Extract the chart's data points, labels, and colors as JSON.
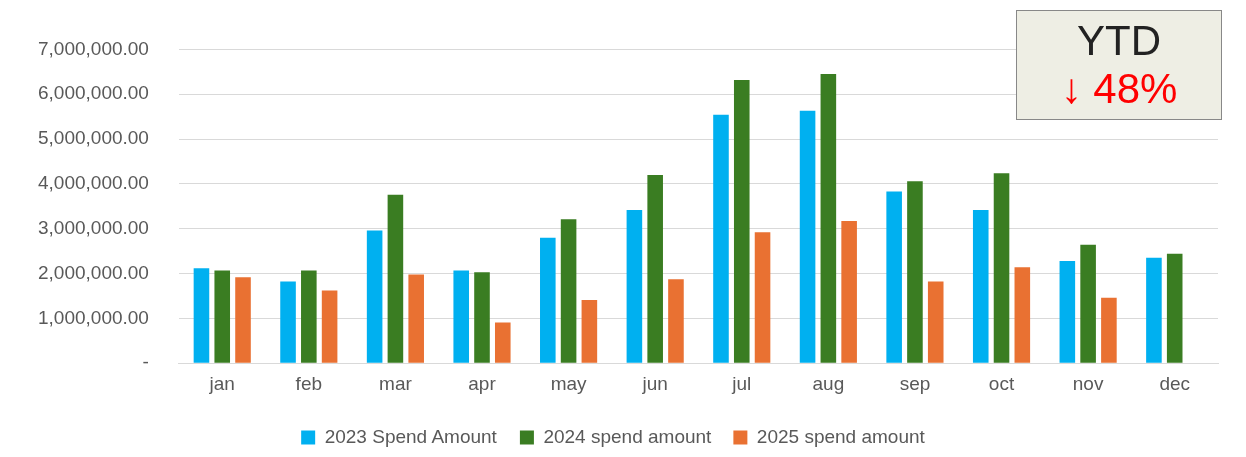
{
  "chart_data": {
    "type": "bar",
    "categories": [
      "jan",
      "feb",
      "mar",
      "apr",
      "may",
      "jun",
      "jul",
      "aug",
      "sep",
      "oct",
      "nov",
      "dec"
    ],
    "series": [
      {
        "name": "2023 Spend Amount",
        "color": "#00b0f0",
        "values": [
          2120000,
          1820000,
          2960000,
          2070000,
          2800000,
          3420000,
          5540000,
          5630000,
          3830000,
          3420000,
          2280000,
          2350000
        ]
      },
      {
        "name": "2024 spend amount",
        "color": "#3a7d22",
        "values": [
          2070000,
          2070000,
          3760000,
          2030000,
          3210000,
          4200000,
          6320000,
          6450000,
          4060000,
          4240000,
          2640000,
          2440000
        ]
      },
      {
        "name": "2025 spend amount",
        "color": "#e97132",
        "values": [
          1920000,
          1620000,
          1980000,
          910000,
          1410000,
          1870000,
          2920000,
          3170000,
          1820000,
          2140000,
          1460000,
          null
        ]
      }
    ],
    "ylim": [
      0,
      7000000
    ],
    "yticks": [
      {
        "value": 0,
        "label": "-"
      },
      {
        "value": 1000000,
        "label": "1,000,000.00"
      },
      {
        "value": 2000000,
        "label": "2,000,000.00"
      },
      {
        "value": 3000000,
        "label": "3,000,000.00"
      },
      {
        "value": 4000000,
        "label": "4,000,000.00"
      },
      {
        "value": 5000000,
        "label": "5,000,000.00"
      },
      {
        "value": 6000000,
        "label": "6,000,000.00"
      },
      {
        "value": 7000000,
        "label": "7,000,000.00"
      }
    ],
    "grid": "y",
    "legend": "bottom",
    "annotations": [
      "YTD",
      "↓ 48%"
    ]
  }
}
